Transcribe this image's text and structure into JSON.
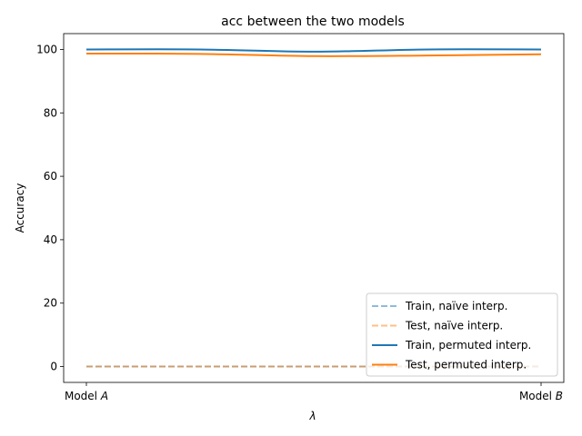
{
  "chart_data": {
    "type": "line",
    "title": "acc between the two models",
    "xlabel": "λ",
    "ylabel": "Accuracy",
    "xlim": [
      0,
      1
    ],
    "ylim": [
      -5,
      105
    ],
    "x_tick_labels": [
      {
        "x": 0,
        "prefix": "Model ",
        "italic": "A"
      },
      {
        "x": 1,
        "prefix": "Model ",
        "italic": "B"
      }
    ],
    "y_ticks": [
      0,
      20,
      40,
      60,
      80,
      100
    ],
    "grid": false,
    "legend_position": "lower right",
    "x": [
      0,
      0.25,
      0.5,
      0.75,
      1.0
    ],
    "series": [
      {
        "name": "Train, naïve interp.",
        "color": "#1f77b4",
        "style": "dashed",
        "alpha": 0.5,
        "values": [
          0,
          0,
          0,
          0,
          0
        ]
      },
      {
        "name": "Test, naïve interp.",
        "color": "#ff7f0e",
        "style": "dashed",
        "alpha": 0.5,
        "values": [
          0,
          0,
          0,
          0,
          0
        ]
      },
      {
        "name": "Train, permuted interp.",
        "color": "#1f77b4",
        "style": "solid",
        "alpha": 1,
        "values": [
          100.0,
          100.0,
          99.3,
          100.0,
          100.0
        ]
      },
      {
        "name": "Test, permuted interp.",
        "color": "#ff7f0e",
        "style": "solid",
        "alpha": 1,
        "values": [
          98.7,
          98.6,
          97.9,
          98.1,
          98.5
        ]
      }
    ]
  }
}
